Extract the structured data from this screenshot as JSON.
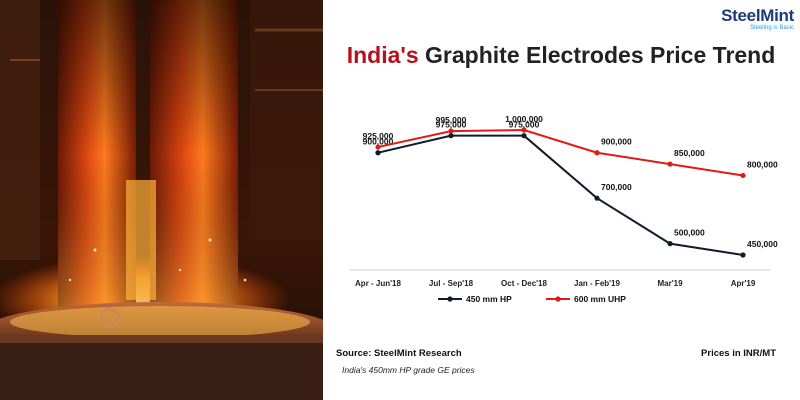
{
  "brand": {
    "name": "SteelMint",
    "tagline": "Steeling is Basic"
  },
  "title": {
    "highlight": "India's",
    "rest": " Graphite Electrodes Price Trend"
  },
  "footer": {
    "source": "Source: SteelMint Research",
    "unit": "Prices in INR/MT",
    "note": "India's 450mm HP grade GE prices"
  },
  "colors": {
    "hp": "#0f1c2c",
    "uhp": "#e11b17",
    "title_highlight": "#b5121b",
    "brand": "#1b3b7a"
  },
  "chart_data": {
    "type": "line",
    "categories": [
      "Apr - Jun'18",
      "Jul - Sep'18",
      "Oct - Dec'18",
      "Jan - Feb'19",
      "Mar'19",
      "Apr'19"
    ],
    "series": [
      {
        "name": "450 mm HP",
        "values": [
          900000,
          975000,
          975000,
          700000,
          500000,
          450000
        ],
        "labels": [
          "900,000",
          "975,000",
          "975,000",
          "700,000",
          "500,000",
          "450,000"
        ]
      },
      {
        "name": "600 mm UHP",
        "values": [
          925000,
          995000,
          1000000,
          900000,
          850000,
          800000
        ],
        "labels": [
          "925,000",
          "995,000",
          "1,000,000",
          "900,000",
          "850,000",
          "800,000"
        ]
      }
    ],
    "legend": "bottom-center",
    "grid": false,
    "title": "",
    "xlabel": "",
    "ylabel": ""
  }
}
